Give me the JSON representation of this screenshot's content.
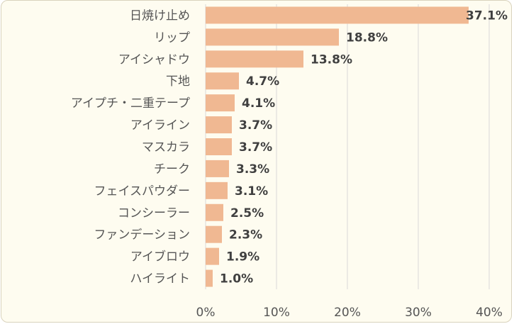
{
  "chart_data": {
    "type": "bar",
    "orientation": "horizontal",
    "categories": [
      "日焼け止め",
      "リップ",
      "アイシャドウ",
      "下地",
      "アイプチ・二重テープ",
      "アイライン",
      "マスカラ",
      "チーク",
      "フェイスパウダー",
      "コンシーラー",
      "ファンデーション",
      "アイブロウ",
      "ハイライト"
    ],
    "values": [
      37.1,
      18.8,
      13.8,
      4.7,
      4.1,
      3.7,
      3.7,
      3.3,
      3.1,
      2.5,
      2.3,
      1.9,
      1.0
    ],
    "value_labels": [
      "37.1%",
      "18.8%",
      "13.8%",
      "4.7%",
      "4.1%",
      "3.7%",
      "3.7%",
      "3.3%",
      "3.1%",
      "2.5%",
      "2.3%",
      "1.9%",
      "1.0%"
    ],
    "xlim": [
      0,
      40
    ],
    "xticks": [
      0,
      10,
      20,
      30,
      40
    ],
    "xtick_labels": [
      "0%",
      "10%",
      "20%",
      "30%",
      "40%"
    ],
    "grid": "vertical",
    "bar_color": "#f0b892",
    "grid_color": "#d9d9d9",
    "background": "#fefcf0"
  }
}
